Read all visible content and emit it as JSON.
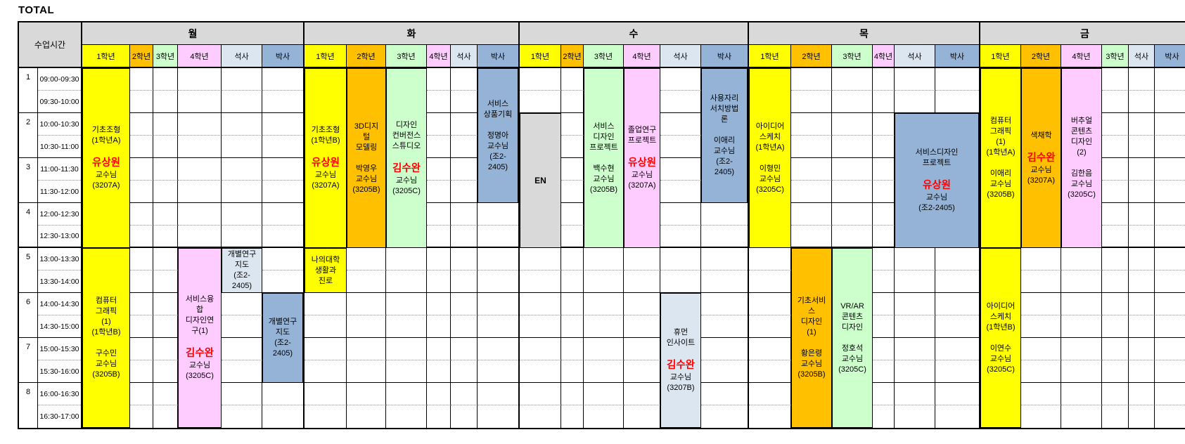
{
  "title": "TOTAL",
  "corner_label": "수업시간",
  "header_bg": "#d9d9d9",
  "accent_red": "#ff0000",
  "grade_colors": {
    "1학년": "#ffff00",
    "2학년": "#ffc000",
    "3학년": "#ccffcc",
    "4학년": "#ffccff",
    "석사": "#dce6f1",
    "박사": "#95b3d7"
  },
  "block_palette": {
    "yellow": "#ffff00",
    "orange": "#ffc000",
    "green": "#ccffcc",
    "pink": "#ffccff",
    "ms": "#dce6f1",
    "phd": "#95b3d7",
    "gray": "#d9d9d9"
  },
  "time_rows": [
    {
      "period": "1",
      "time": "09:00-09:30"
    },
    {
      "period": "",
      "time": "09:30-10:00"
    },
    {
      "period": "2",
      "time": "10:00-10:30"
    },
    {
      "period": "",
      "time": "10:30-11:00"
    },
    {
      "period": "3",
      "time": "11:00-11:30"
    },
    {
      "period": "",
      "time": "11:30-12:00"
    },
    {
      "period": "4",
      "time": "12:00-12:30"
    },
    {
      "period": "",
      "time": "12:30-13:00"
    },
    {
      "period": "5",
      "time": "13:00-13:30"
    },
    {
      "period": "",
      "time": "13:30-14:00"
    },
    {
      "period": "6",
      "time": "14:00-14:30"
    },
    {
      "period": "",
      "time": "14:30-15:00"
    },
    {
      "period": "7",
      "time": "15:00-15:30"
    },
    {
      "period": "",
      "time": "15:30-16:00"
    },
    {
      "period": "8",
      "time": "16:00-16:30"
    },
    {
      "period": "",
      "time": "16:30-17:00"
    }
  ],
  "days": [
    {
      "name": "월",
      "columns": [
        "1학년",
        "2학년",
        "3학년",
        "4학년",
        "석사",
        "박사"
      ],
      "blocks": [
        {
          "col": 0,
          "start": 0,
          "rows": 8,
          "color": "yellow",
          "lines": [
            {
              "t": "기초조형"
            },
            {
              "t": "(1학년A)"
            },
            {
              "t": ""
            },
            {
              "t": "유상원",
              "em": true
            },
            {
              "t": "교수님"
            },
            {
              "t": "(3207A)"
            }
          ]
        },
        {
          "col": 0,
          "start": 8,
          "rows": 8,
          "color": "yellow",
          "lines": [
            {
              "t": "컴퓨터"
            },
            {
              "t": "그래픽"
            },
            {
              "t": "(1)"
            },
            {
              "t": "(1학년B)"
            },
            {
              "t": ""
            },
            {
              "t": "구수민"
            },
            {
              "t": "교수님"
            },
            {
              "t": "(3205B)"
            }
          ]
        },
        {
          "col": 3,
          "start": 8,
          "rows": 8,
          "color": "pink",
          "lines": [
            {
              "t": "서비스융"
            },
            {
              "t": "합"
            },
            {
              "t": "디자인연"
            },
            {
              "t": "구(1)"
            },
            {
              "t": ""
            },
            {
              "t": "김수완",
              "em": true
            },
            {
              "t": "교수님"
            },
            {
              "t": "(3205C)"
            }
          ]
        },
        {
          "col": 4,
          "start": 8,
          "rows": 2,
          "color": "ms",
          "lines": [
            {
              "t": "개별연구"
            },
            {
              "t": "지도"
            },
            {
              "t": "(조2-"
            },
            {
              "t": "2405)"
            }
          ]
        },
        {
          "col": 5,
          "start": 10,
          "rows": 4,
          "color": "phd",
          "lines": [
            {
              "t": "개별연구"
            },
            {
              "t": "지도"
            },
            {
              "t": "(조2-"
            },
            {
              "t": "2405)"
            }
          ]
        }
      ]
    },
    {
      "name": "화",
      "columns": [
        "1학년",
        "2학년",
        "3학년",
        "4학년",
        "석사",
        "박사"
      ],
      "blocks": [
        {
          "col": 0,
          "start": 0,
          "rows": 8,
          "color": "yellow",
          "lines": [
            {
              "t": "기초조형"
            },
            {
              "t": "(1학년B)"
            },
            {
              "t": ""
            },
            {
              "t": "유상원",
              "em": true
            },
            {
              "t": "교수님"
            },
            {
              "t": "(3207A)"
            }
          ]
        },
        {
          "col": 1,
          "start": 0,
          "rows": 8,
          "color": "orange",
          "lines": [
            {
              "t": "3D디지"
            },
            {
              "t": "털"
            },
            {
              "t": "모델링"
            },
            {
              "t": ""
            },
            {
              "t": "박영우"
            },
            {
              "t": "교수님"
            },
            {
              "t": "(3205B)"
            }
          ]
        },
        {
          "col": 2,
          "start": 0,
          "rows": 8,
          "color": "green",
          "lines": [
            {
              "t": "디자인"
            },
            {
              "t": "컨버전스"
            },
            {
              "t": "스튜디오"
            },
            {
              "t": ""
            },
            {
              "t": "김수완",
              "em": true
            },
            {
              "t": "교수님"
            },
            {
              "t": "(3205C)"
            }
          ]
        },
        {
          "col": 5,
          "start": 0,
          "rows": 6,
          "color": "phd",
          "lines": [
            {
              "t": "서비스"
            },
            {
              "t": "상품기획"
            },
            {
              "t": ""
            },
            {
              "t": "정명아"
            },
            {
              "t": "교수님"
            },
            {
              "t": "(조2-"
            },
            {
              "t": "2405)"
            }
          ]
        },
        {
          "col": 0,
          "start": 8,
          "rows": 2,
          "color": "yellow",
          "lines": [
            {
              "t": "나의대학"
            },
            {
              "t": "생활과"
            },
            {
              "t": "진로"
            }
          ]
        }
      ]
    },
    {
      "name": "수",
      "columns": [
        "1학년",
        "2학년",
        "3학년",
        "4학년",
        "석사",
        "박사"
      ],
      "blocks": [
        {
          "col": 0,
          "start": 2,
          "rows": 6,
          "color": "gray",
          "lines": [
            {
              "t": "EN",
              "bold": true
            }
          ]
        },
        {
          "col": 2,
          "start": 0,
          "rows": 8,
          "color": "green",
          "lines": [
            {
              "t": "서비스"
            },
            {
              "t": "디자인"
            },
            {
              "t": "프로젝트"
            },
            {
              "t": ""
            },
            {
              "t": "백수현"
            },
            {
              "t": "교수님"
            },
            {
              "t": "(3205B)"
            }
          ]
        },
        {
          "col": 3,
          "start": 0,
          "rows": 8,
          "color": "pink",
          "lines": [
            {
              "t": "졸업연구"
            },
            {
              "t": "프로젝트"
            },
            {
              "t": ""
            },
            {
              "t": "유상원",
              "em": true
            },
            {
              "t": "교수님"
            },
            {
              "t": "(3207A)"
            }
          ]
        },
        {
          "col": 5,
          "start": 0,
          "rows": 6,
          "color": "phd",
          "lines": [
            {
              "t": "사용자리"
            },
            {
              "t": "서치방법"
            },
            {
              "t": "론"
            },
            {
              "t": ""
            },
            {
              "t": "이애리"
            },
            {
              "t": "교수님"
            },
            {
              "t": "(조2-"
            },
            {
              "t": "2405)"
            }
          ]
        },
        {
          "col": 4,
          "start": 10,
          "rows": 6,
          "color": "ms",
          "lines": [
            {
              "t": "휴먼"
            },
            {
              "t": "인사이트"
            },
            {
              "t": ""
            },
            {
              "t": "김수완",
              "em": true
            },
            {
              "t": "교수님"
            },
            {
              "t": "(3207B)"
            }
          ]
        }
      ]
    },
    {
      "name": "목",
      "columns": [
        "1학년",
        "2학년",
        "3학년",
        "4학년",
        "석사",
        "박사"
      ],
      "blocks": [
        {
          "col": 0,
          "start": 0,
          "rows": 8,
          "color": "yellow",
          "lines": [
            {
              "t": "아이디어"
            },
            {
              "t": "스케치"
            },
            {
              "t": "(1학년A)"
            },
            {
              "t": ""
            },
            {
              "t": "이형민"
            },
            {
              "t": "교수님"
            },
            {
              "t": "(3205C)"
            }
          ]
        },
        {
          "col": 4,
          "colspan": 2,
          "start": 2,
          "rows": 6,
          "color": "phd",
          "lines": [
            {
              "t": "서비스디자인"
            },
            {
              "t": "프로젝트"
            },
            {
              "t": ""
            },
            {
              "t": "유상원",
              "em": true
            },
            {
              "t": "교수님"
            },
            {
              "t": "(조2-2405)"
            }
          ]
        },
        {
          "col": 1,
          "start": 8,
          "rows": 8,
          "color": "orange",
          "lines": [
            {
              "t": "기초서비"
            },
            {
              "t": "스"
            },
            {
              "t": "디자인"
            },
            {
              "t": "(1)"
            },
            {
              "t": ""
            },
            {
              "t": "황은령"
            },
            {
              "t": "교수님"
            },
            {
              "t": "(3205B)"
            }
          ]
        },
        {
          "col": 2,
          "start": 8,
          "rows": 8,
          "color": "green",
          "lines": [
            {
              "t": "VR/AR"
            },
            {
              "t": "콘텐츠"
            },
            {
              "t": "디자인"
            },
            {
              "t": ""
            },
            {
              "t": "정호석"
            },
            {
              "t": "교수님"
            },
            {
              "t": "(3205C)"
            }
          ]
        }
      ]
    },
    {
      "name": "금",
      "columns": [
        "1학년",
        "2학년",
        "4학년",
        "3학년",
        "석사",
        "박사"
      ],
      "blocks": [
        {
          "col": 0,
          "start": 0,
          "rows": 8,
          "color": "yellow",
          "lines": [
            {
              "t": "컴퓨터"
            },
            {
              "t": "그래픽"
            },
            {
              "t": "(1)"
            },
            {
              "t": "(1학년A)"
            },
            {
              "t": ""
            },
            {
              "t": "이애리"
            },
            {
              "t": "교수님"
            },
            {
              "t": "(3205B)"
            }
          ]
        },
        {
          "col": 1,
          "start": 0,
          "rows": 8,
          "color": "orange",
          "lines": [
            {
              "t": "색채학"
            },
            {
              "t": ""
            },
            {
              "t": "김수완",
              "em": true
            },
            {
              "t": "교수님"
            },
            {
              "t": "(3207A)"
            }
          ]
        },
        {
          "col": 2,
          "start": 0,
          "rows": 8,
          "color": "pink",
          "lines": [
            {
              "t": "버추얼"
            },
            {
              "t": "콘텐츠"
            },
            {
              "t": "디자인"
            },
            {
              "t": "(2)"
            },
            {
              "t": ""
            },
            {
              "t": "김한음"
            },
            {
              "t": "교수님"
            },
            {
              "t": "(3205C)"
            }
          ]
        },
        {
          "col": 0,
          "start": 8,
          "rows": 8,
          "color": "yellow",
          "lines": [
            {
              "t": "아이디어"
            },
            {
              "t": "스케치"
            },
            {
              "t": "(1학년B)"
            },
            {
              "t": ""
            },
            {
              "t": "이연수"
            },
            {
              "t": "교수님"
            },
            {
              "t": "(3205C)"
            }
          ]
        }
      ]
    }
  ]
}
